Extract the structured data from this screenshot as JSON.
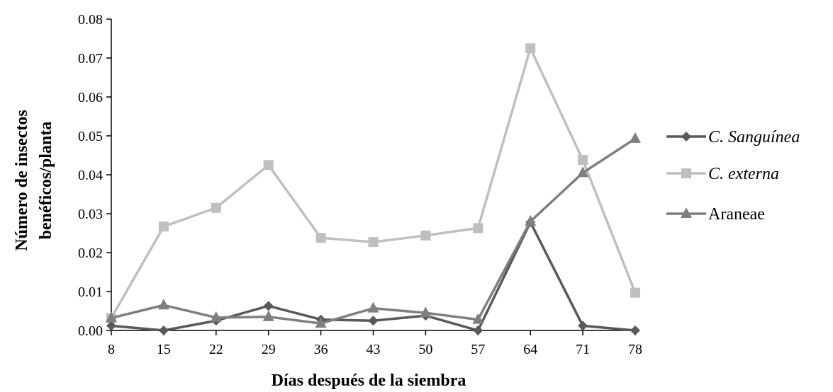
{
  "chart_data": {
    "type": "line",
    "title": "",
    "xlabel": "Días después de la siembra",
    "ylabel": [
      "Número de insectos",
      "benéficos/planta"
    ],
    "x": [
      8,
      15,
      22,
      29,
      36,
      43,
      50,
      57,
      64,
      71,
      78
    ],
    "x_tick_labels": [
      "8",
      "15",
      "22",
      "29",
      "36",
      "43",
      "50",
      "57",
      "64",
      "71",
      "78"
    ],
    "ylim": [
      0,
      0.08
    ],
    "y_ticks": [
      0,
      0.01,
      0.02,
      0.03,
      0.04,
      0.05,
      0.06,
      0.07,
      0.08
    ],
    "y_tick_labels": [
      "0.00",
      "0.01",
      "0.02",
      "0.03",
      "0.04",
      "0.05",
      "0.06",
      "0.07",
      "0.08"
    ],
    "grid": false,
    "legend_position": "right",
    "series": [
      {
        "name": "C. Sanguínea",
        "italic": true,
        "marker": "diamond",
        "color": "#595959",
        "values": [
          0.0012,
          0.0,
          0.0025,
          0.0063,
          0.0028,
          0.0025,
          0.0038,
          0.0,
          0.0278,
          0.0012,
          0.0
        ]
      },
      {
        "name": "C. externa",
        "italic": true,
        "marker": "square",
        "color": "#bfbfbf",
        "values": [
          0.0032,
          0.0267,
          0.0315,
          0.0425,
          0.0238,
          0.0227,
          0.0244,
          0.0263,
          0.0725,
          0.0438,
          0.0097
        ]
      },
      {
        "name": "Araneae",
        "italic": false,
        "marker": "triangle",
        "color": "#7f7f7f",
        "values": [
          0.0032,
          0.0065,
          0.0033,
          0.0035,
          0.0018,
          0.0057,
          0.0045,
          0.0028,
          0.028,
          0.0405,
          0.0493
        ]
      }
    ]
  }
}
